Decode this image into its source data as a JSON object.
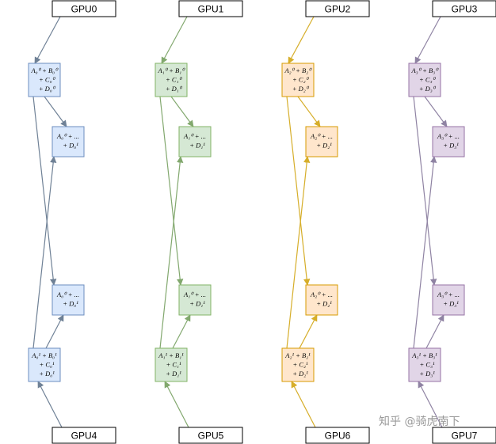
{
  "gpus_top": [
    "GPU0",
    "GPU1",
    "GPU2",
    "GPU3"
  ],
  "gpus_bottom": [
    "GPU4",
    "GPU5",
    "GPU6",
    "GPU7"
  ],
  "columns": [
    {
      "color": "blue",
      "fill": "#dae8fc",
      "stroke": "#6c8ebf",
      "arrow": "#6f8196",
      "box_top": [
        "A₀⁰ + B₀⁰",
        "+ C₀⁰",
        "+ D₀⁰"
      ],
      "box_mid_upper": [
        "A₀⁰ + ...",
        "+ D₀¹"
      ],
      "box_mid_lower": [
        "A₀⁰ + ...",
        "+ D₀¹"
      ],
      "box_bottom": [
        "A₀¹ + B₀¹",
        "+ C₀¹",
        "+ D₀¹"
      ]
    },
    {
      "color": "green",
      "fill": "#d5e8d4",
      "stroke": "#82b366",
      "arrow": "#82a86e",
      "box_top": [
        "A₁⁰ + B₁⁰",
        "+ C₁⁰",
        "+ D₁⁰"
      ],
      "box_mid_upper": [
        "A₁⁰ + ...",
        "+ D₁¹"
      ],
      "box_mid_lower": [
        "A₁⁰ + ...",
        "+ D₁¹"
      ],
      "box_bottom": [
        "A₁¹ + B₁¹",
        "+ C₁¹",
        "+ D₁¹"
      ]
    },
    {
      "color": "orange",
      "fill": "#ffe6cc",
      "stroke": "#d79b00",
      "arrow": "#d6ae2a",
      "box_top": [
        "A₂⁰ + B₂⁰",
        "+ C₂⁰",
        "+ D₂⁰"
      ],
      "box_mid_upper": [
        "A₂⁰ + ...",
        "+ D₂¹"
      ],
      "box_mid_lower": [
        "A₂⁰ + ...",
        "+ D₂¹"
      ],
      "box_bottom": [
        "A₂¹ + B₂¹",
        "+ C₂¹",
        "+ D₂¹"
      ]
    },
    {
      "color": "purple",
      "fill": "#e1d5e7",
      "stroke": "#9673a6",
      "arrow": "#8f83a3",
      "box_top": [
        "A₃⁰ + B₃⁰",
        "+ C₃⁰",
        "+ D₃⁰"
      ],
      "box_mid_upper": [
        "A₃⁰ + ...",
        "+ D₃¹"
      ],
      "box_mid_lower": [
        "A₃⁰ + ...",
        "+ D₃¹"
      ],
      "box_bottom": [
        "A₃¹ + B₃¹",
        "+ C₃¹",
        "+ D₃¹"
      ]
    }
  ],
  "watermark": "知乎 @骑虎南下"
}
